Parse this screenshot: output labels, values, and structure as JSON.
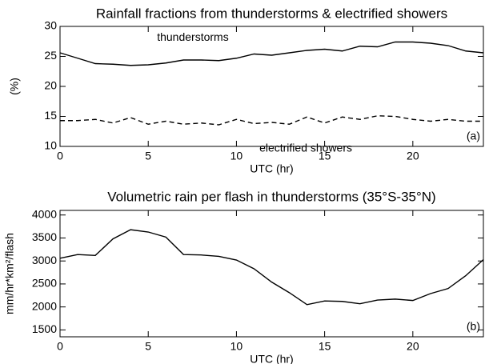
{
  "chart_data": [
    {
      "type": "line",
      "title": "Rainfall fractions from thunderstorms & electrified showers",
      "x_label": "UTC (hr)",
      "y_label": "(%)",
      "x": [
        0,
        1,
        2,
        3,
        4,
        5,
        6,
        7,
        8,
        9,
        10,
        11,
        12,
        13,
        14,
        15,
        16,
        17,
        18,
        19,
        20,
        21,
        22,
        23,
        24
      ],
      "series": [
        {
          "name": "thunderstorms",
          "color": "#000000",
          "line_style": "solid",
          "values": [
            25.6,
            24.7,
            23.8,
            23.7,
            23.5,
            23.6,
            23.9,
            24.4,
            24.4,
            24.3,
            24.7,
            25.4,
            25.2,
            25.6,
            26.0,
            26.2,
            25.9,
            26.7,
            26.6,
            27.4,
            27.4,
            27.2,
            26.8,
            25.9,
            25.6
          ]
        },
        {
          "name": "electrified showers",
          "color": "#000000",
          "line_style": "dashed",
          "values": [
            14.3,
            14.3,
            14.5,
            13.9,
            14.8,
            13.7,
            14.2,
            13.7,
            13.9,
            13.6,
            14.5,
            13.8,
            14.0,
            13.7,
            14.9,
            13.9,
            14.9,
            14.5,
            15.1,
            15.0,
            14.5,
            14.2,
            14.5,
            14.2,
            14.2
          ]
        }
      ],
      "annotations": [
        "(a)"
      ],
      "xlim": [
        0,
        24
      ],
      "xticks": [
        0,
        5,
        10,
        15,
        20
      ],
      "ylim": [
        10,
        30
      ],
      "yticks": [
        10,
        15,
        20,
        25,
        30
      ]
    },
    {
      "type": "line",
      "title": "Volumetric rain per flash in thunderstorms (35°S-35°N)",
      "x_label": "UTC (hr)",
      "y_label": "mm/hr*km²/flash",
      "x": [
        0,
        1,
        2,
        3,
        4,
        5,
        6,
        7,
        8,
        9,
        10,
        11,
        12,
        13,
        14,
        15,
        16,
        17,
        18,
        19,
        20,
        21,
        22,
        23,
        24
      ],
      "series": [
        {
          "color": "#000000",
          "line_style": "solid",
          "values": [
            3060,
            3140,
            3120,
            3480,
            3680,
            3630,
            3520,
            3140,
            3130,
            3100,
            3020,
            2830,
            2540,
            2310,
            2050,
            2130,
            2120,
            2070,
            2150,
            2170,
            2140,
            2290,
            2400,
            2680,
            3030
          ]
        }
      ],
      "annotations": [
        "(b)"
      ],
      "xlim": [
        0,
        24
      ],
      "xticks": [
        0,
        5,
        10,
        15,
        20
      ],
      "ylim": [
        1350,
        4100
      ],
      "yticks": [
        1500,
        2000,
        2500,
        3000,
        3500,
        4000
      ]
    }
  ]
}
